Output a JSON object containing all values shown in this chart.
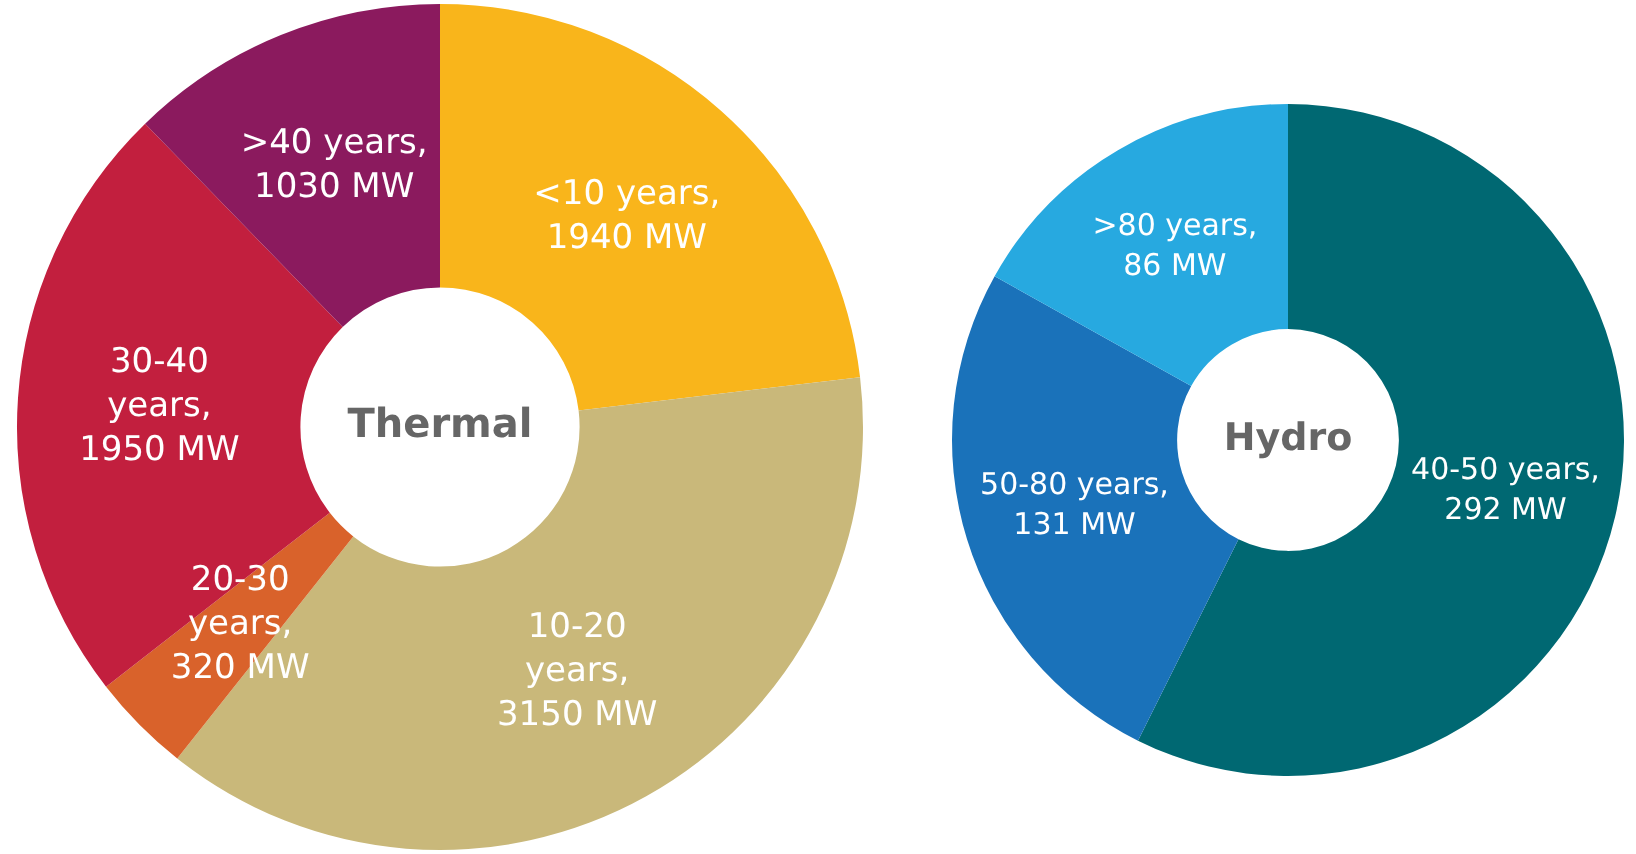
{
  "chart_data": [
    {
      "type": "donut",
      "title": "Thermal",
      "categories": [
        "<10 years,\n1940 MW",
        "10-20\nyears,\n3150 MW",
        "20-30\nyears,\n320 MW",
        "30-40\nyears,\n1950 MW",
        ">40 years,\n1030 MW"
      ],
      "values": [
        1940,
        3150,
        320,
        1950,
        1030
      ],
      "colors": [
        "#f9b51b",
        "#c9b87a",
        "#d9622b",
        "#c21f3e",
        "#8b1a5e"
      ],
      "legend": false
    },
    {
      "type": "donut",
      "title": "Hydro",
      "categories": [
        "40-50 years,\n292 MW",
        "50-80 years,\n131 MW",
        ">80 years,\n86 MW"
      ],
      "values": [
        292,
        131,
        86
      ],
      "colors": [
        "#006872",
        "#1a72ba",
        "#27a9e0"
      ],
      "legend": false
    }
  ]
}
